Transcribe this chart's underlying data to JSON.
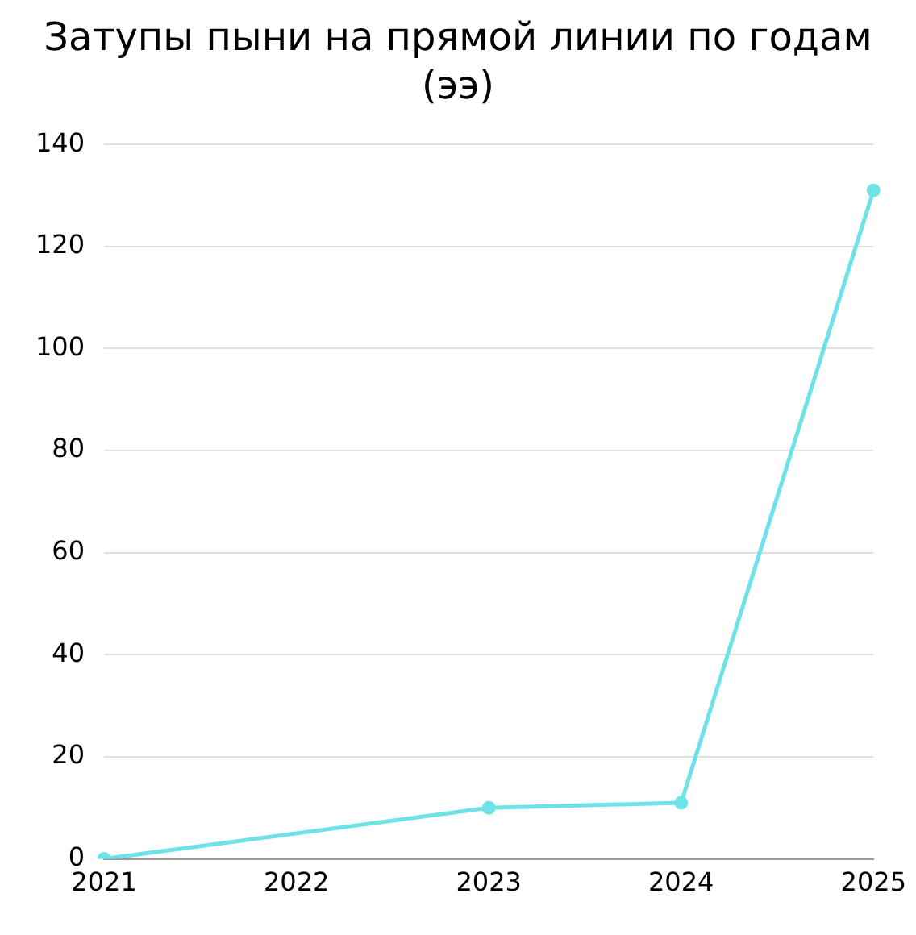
{
  "chart_data": {
    "type": "line",
    "title": "Затупы пыни на прямой линии по годам (ээ)",
    "categories": [
      "2021",
      "2022",
      "2023",
      "2024",
      "2025"
    ],
    "series": [
      {
        "color": "#6ee2e6",
        "values": [
          0,
          null,
          10,
          11,
          131
        ]
      }
    ],
    "ylim": [
      0,
      140
    ],
    "yticks": [
      0,
      20,
      40,
      60,
      80,
      100,
      120,
      140
    ],
    "grid": "y",
    "legend": false,
    "marker": "circle",
    "line_style": "solid"
  }
}
